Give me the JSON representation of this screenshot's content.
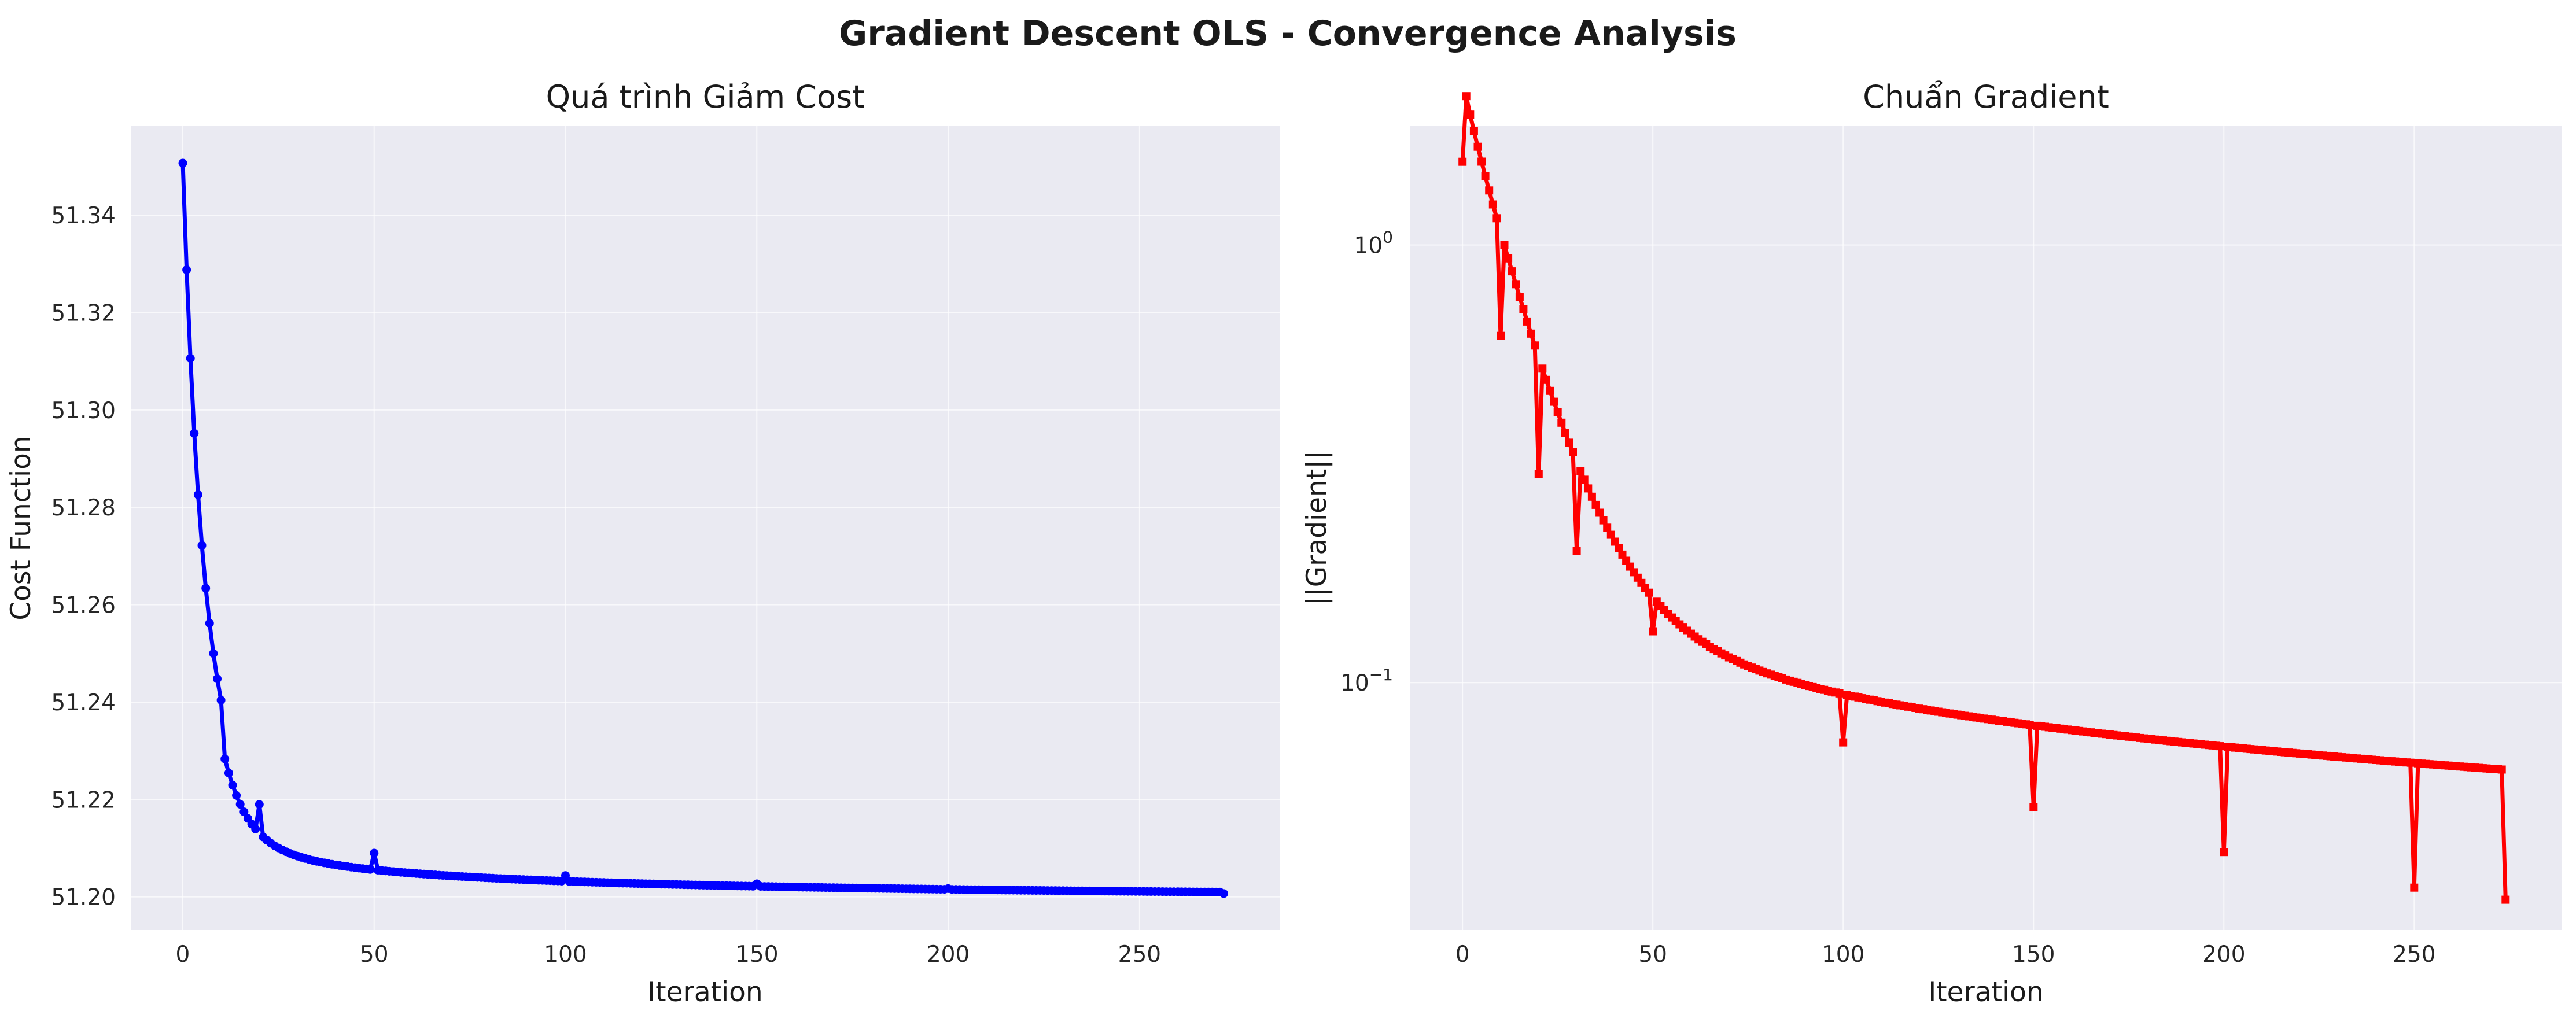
{
  "figure": {
    "title": "Gradient Descent OLS - Convergence Analysis"
  },
  "chart_data": [
    {
      "type": "line",
      "title": "Quá trình Giảm Cost",
      "xlabel": "Iteration",
      "ylabel": "Cost Function",
      "xlim": [
        -13.6,
        286.6
      ],
      "ylim": [
        51.1932,
        51.3583
      ],
      "xticks": [
        0,
        50,
        100,
        150,
        200,
        250
      ],
      "xtick_labels": [
        "0",
        "50",
        "100",
        "150",
        "200",
        "250"
      ],
      "yticks": [
        51.2,
        51.22,
        51.24,
        51.26,
        51.28,
        51.3,
        51.32,
        51.34
      ],
      "ytick_labels": [
        "51.20",
        "51.22",
        "51.24",
        "51.26",
        "51.28",
        "51.30",
        "51.32",
        "51.34"
      ],
      "grid": true,
      "series": [
        {
          "name": "cost",
          "color": "#0000ff",
          "marker": "circle",
          "model": "exp_decay_plus_power",
          "n_iterations": 273,
          "anchor_points": [
            {
              "iteration": 0,
              "value": 51.3507
            },
            {
              "iteration": 1,
              "value": 51.3288
            },
            {
              "iteration": 2,
              "value": 51.3106
            },
            {
              "iteration": 3,
              "value": 51.2952
            },
            {
              "iteration": 4,
              "value": 51.2826
            },
            {
              "iteration": 5,
              "value": 51.2722
            },
            {
              "iteration": 6,
              "value": 51.2634
            },
            {
              "iteration": 7,
              "value": 51.2562
            },
            {
              "iteration": 8,
              "value": 51.25
            },
            {
              "iteration": 9,
              "value": 51.2448
            },
            {
              "iteration": 10,
              "value": 51.2404
            },
            {
              "iteration": 20,
              "value": 51.219
            },
            {
              "iteration": 50,
              "value": 51.209
            },
            {
              "iteration": 100,
              "value": 51.2044
            },
            {
              "iteration": 150,
              "value": 51.2027
            },
            {
              "iteration": 200,
              "value": 51.2017
            },
            {
              "iteration": 272,
              "value": 51.2007
            }
          ],
          "params": {
            "floor": 51.1975,
            "a": 0.0945,
            "k": 0.172,
            "b": 0.0575,
            "p": 0.5
          }
        }
      ]
    },
    {
      "type": "line",
      "title": "Chuẩn Gradient",
      "xlabel": "Iteration",
      "ylabel": "||Gradient||",
      "yscale": "log",
      "xlim": [
        -13.7,
        288.7
      ],
      "ylim": [
        0.0272,
        1.87
      ],
      "xticks": [
        0,
        50,
        100,
        150,
        200,
        250
      ],
      "xtick_labels": [
        "0",
        "50",
        "100",
        "150",
        "200",
        "250"
      ],
      "yticks": [
        1.0,
        0.1
      ],
      "ytick_labels": [
        {
          "base": "10",
          "exp": "0"
        },
        {
          "base": "10",
          "exp": "−1"
        }
      ],
      "grid": true,
      "series": [
        {
          "name": "gradient_norm",
          "color": "#ff0000",
          "marker": "square",
          "model": "log_exp_decay_plus_power",
          "n_iterations": 275,
          "anchor_points": [
            {
              "iteration": 0,
              "value": 1.55
            },
            {
              "iteration": 10,
              "value": 0.62
            },
            {
              "iteration": 20,
              "value": 0.3
            },
            {
              "iteration": 30,
              "value": 0.2
            },
            {
              "iteration": 50,
              "value": 0.131
            },
            {
              "iteration": 100,
              "value": 0.073
            },
            {
              "iteration": 150,
              "value": 0.052
            },
            {
              "iteration": 200,
              "value": 0.041
            },
            {
              "iteration": 250,
              "value": 0.034
            },
            {
              "iteration": 274,
              "value": 0.0319
            }
          ],
          "params": {
            "a": 1.89,
            "k": 0.08,
            "b": 0.565,
            "q": 0.85,
            "m": 0.39
          }
        }
      ]
    }
  ]
}
